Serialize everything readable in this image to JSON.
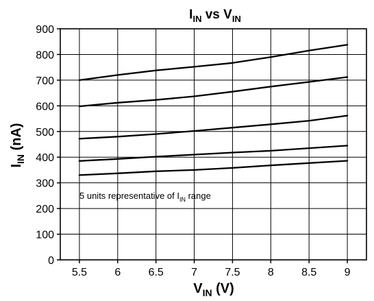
{
  "chart_data": {
    "type": "line",
    "title": {
      "main": "I",
      "sub1": "IN",
      "mid": " vs V",
      "sub2": "IN"
    },
    "xlabel": {
      "main": "V",
      "sub": "IN",
      "rest": " (V)"
    },
    "ylabel": {
      "main": "I",
      "sub": "IN",
      "rest": " (nA)"
    },
    "annotation": {
      "pre": "5 units representative of I",
      "sub": "IN",
      "post": " range"
    },
    "xlim": [
      5.25,
      9.25
    ],
    "ylim": [
      0,
      900
    ],
    "x_ticks": [
      "5.5",
      "6",
      "6.5",
      "7",
      "7.5",
      "8",
      "8.5",
      "9"
    ],
    "y_ticks": [
      "0",
      "100",
      "200",
      "300",
      "400",
      "500",
      "600",
      "700",
      "800",
      "900"
    ],
    "grid": true,
    "x": [
      5.5,
      6,
      6.5,
      7,
      7.5,
      8,
      8.5,
      9
    ],
    "series": [
      {
        "values": [
          700,
          720,
          738,
          752,
          767,
          790,
          815,
          838
        ]
      },
      {
        "values": [
          598,
          612,
          623,
          637,
          655,
          675,
          693,
          712
        ]
      },
      {
        "values": [
          472,
          480,
          490,
          502,
          515,
          528,
          542,
          562
        ]
      },
      {
        "values": [
          385,
          393,
          402,
          410,
          418,
          425,
          435,
          445
        ]
      },
      {
        "values": [
          330,
          337,
          345,
          350,
          358,
          368,
          377,
          386
        ]
      }
    ],
    "line_color": "#000000"
  }
}
